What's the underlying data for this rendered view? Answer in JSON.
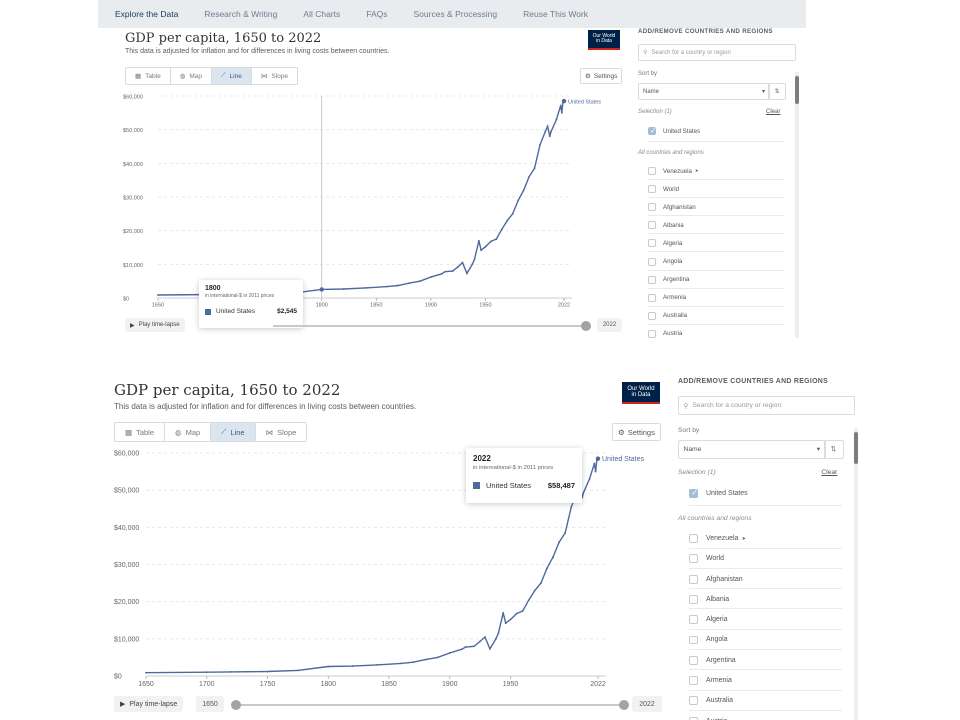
{
  "nav": [
    "Explore the Data",
    "Research & Writing",
    "All Charts",
    "FAQs",
    "Sources & Processing",
    "Reuse This Work"
  ],
  "chart": {
    "title": "GDP per capita, 1650 to 2022",
    "subtitle": "This data is adjusted for inflation and for differences in living costs between countries.",
    "logo_line1": "Our World",
    "logo_line2": "in Data",
    "tabs": [
      "Table",
      "Map",
      "Line",
      "Slope"
    ],
    "active_tab": "Line",
    "tab_icons": [
      "table-icon",
      "globe-icon",
      "line-chart-icon",
      "slope-icon"
    ],
    "settings_label": "Settings",
    "series_label": "United States",
    "series_color": "#4c6a9c"
  },
  "chart_data": {
    "type": "line",
    "title": "GDP per capita, 1650 to 2022",
    "ylim": [
      0,
      60000
    ],
    "yticks": [
      "$0",
      "$10,000",
      "$20,000",
      "$30,000",
      "$40,000",
      "$50,000",
      "$60,000"
    ],
    "xticks": [
      "1650",
      "1700",
      "1750",
      "1800",
      "1850",
      "1900",
      "1950",
      "2022"
    ],
    "xticks_panel1": [
      "1650",
      "1800",
      "1850",
      "1900",
      "1950",
      "2022"
    ],
    "series": [
      {
        "name": "United States",
        "x": [
          1650,
          1700,
          1720,
          1750,
          1775,
          1800,
          1820,
          1840,
          1860,
          1870,
          1880,
          1890,
          1900,
          1910,
          1913,
          1920,
          1925,
          1929,
          1933,
          1938,
          1940,
          1944,
          1946,
          1950,
          1955,
          1960,
          1965,
          1970,
          1975,
          1980,
          1985,
          1990,
          1995,
          2000,
          2005,
          2007,
          2009,
          2010,
          2015,
          2019,
          2020,
          2021,
          2022
        ],
        "y": [
          890,
          1030,
          1100,
          1220,
          1500,
          2545,
          2670,
          3000,
          3400,
          3700,
          4400,
          5000,
          6200,
          7200,
          7800,
          8000,
          9300,
          10500,
          7300,
          10000,
          11500,
          17000,
          14200,
          15200,
          16800,
          17500,
          20400,
          23000,
          25000,
          29000,
          32000,
          36000,
          38500,
          45500,
          49500,
          51000,
          48000,
          49300,
          53000,
          57200,
          55000,
          58000,
          58487
        ]
      }
    ],
    "grid": true,
    "legend": "end-of-line label"
  },
  "panel1": {
    "tooltip": {
      "year": "1800",
      "unit": "in international-$ in 2011 prices",
      "series": "United States",
      "value": "$2,545"
    },
    "timeline": {
      "play_label": "Play time-lapse",
      "end_year": "2022"
    }
  },
  "panel2": {
    "tooltip": {
      "year": "2022",
      "unit": "in international-$ in 2011 prices",
      "series": "United States",
      "value": "$58,487"
    },
    "timeline": {
      "play_label": "Play time-lapse",
      "start_year": "1650",
      "end_year": "2022"
    }
  },
  "sidebar": {
    "heading": "ADD/REMOVE COUNTRIES AND REGIONS",
    "search_placeholder": "Search for a country or region",
    "sort_label": "Sort by",
    "sort_value": "Name",
    "selection_label": "Selection (1)",
    "clear_label": "Clear",
    "selected": [
      "United States"
    ],
    "all_label": "All countries and regions",
    "items": [
      "Venezuela",
      "World",
      "Afghanistan",
      "Albania",
      "Algeria",
      "Angola",
      "Argentina",
      "Armenia",
      "Australia",
      "Austria"
    ]
  }
}
